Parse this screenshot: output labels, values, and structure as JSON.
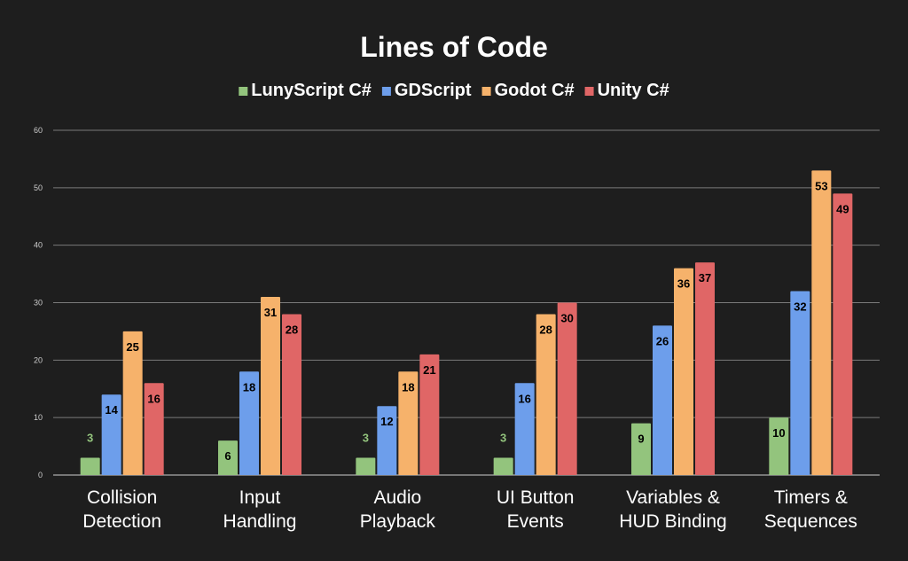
{
  "chart_data": {
    "type": "bar",
    "title": "Lines of Code",
    "xlabel": "",
    "ylabel": "",
    "ylim": [
      0,
      60
    ],
    "yticks": [
      0,
      10,
      20,
      30,
      40,
      50,
      60
    ],
    "grid": true,
    "legend_position": "top",
    "categories": [
      [
        "Collision",
        "Detection"
      ],
      [
        "Input",
        "Handling"
      ],
      [
        "Audio",
        "Playback"
      ],
      [
        "UI Button",
        "Events"
      ],
      [
        "Variables &",
        "HUD Binding"
      ],
      [
        "Timers &",
        "Sequences"
      ]
    ],
    "series": [
      {
        "name": "LunyScript C#",
        "color": "#93c47d",
        "values": [
          3,
          6,
          3,
          3,
          9,
          10
        ]
      },
      {
        "name": "GDScript",
        "color": "#6d9eeb",
        "values": [
          14,
          18,
          12,
          16,
          26,
          32
        ]
      },
      {
        "name": "Godot C#",
        "color": "#f6b26b",
        "values": [
          25,
          31,
          18,
          28,
          36,
          53
        ]
      },
      {
        "name": "Unity C#",
        "color": "#e06666",
        "values": [
          16,
          28,
          21,
          30,
          37,
          49
        ]
      }
    ],
    "colors": {
      "background": "#1e1e1e",
      "text": "#ffffff",
      "grid": "#7a7a7a",
      "tick_text": "#cccccc",
      "data_label": "#000000",
      "data_label_outside": "#93c47d"
    }
  }
}
